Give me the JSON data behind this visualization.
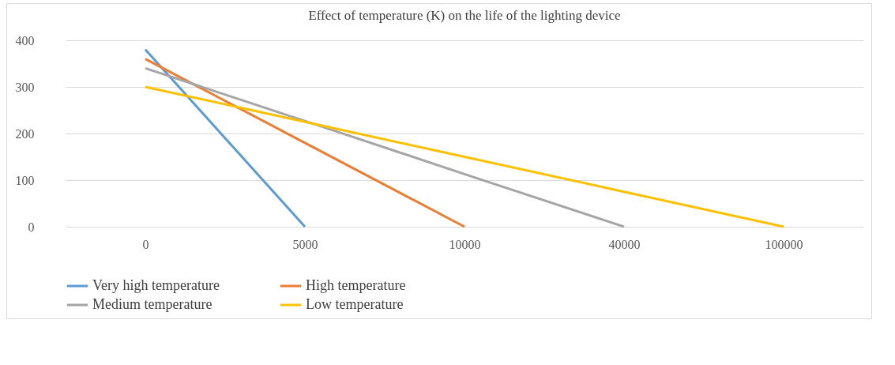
{
  "chart_data": {
    "type": "line",
    "title": "Effect of temperature (K) on the life of the lighting device",
    "categories": [
      "0",
      "5000",
      "10000",
      "40000",
      "100000"
    ],
    "series": [
      {
        "name": "Very high temperature",
        "color": "#5b9bd5",
        "values": [
          380,
          0,
          null,
          null,
          null
        ]
      },
      {
        "name": "High temperature",
        "color": "#ed7d31",
        "values": [
          360,
          180,
          0,
          null,
          null
        ]
      },
      {
        "name": "Medium temperature",
        "color": "#a5a5a5",
        "values": [
          340,
          227,
          113,
          0,
          null
        ]
      },
      {
        "name": "Low temperature",
        "color": "#ffc000",
        "values": [
          300,
          225,
          150,
          75,
          0
        ]
      }
    ],
    "ylim": [
      0,
      400
    ],
    "yticks": [
      0,
      100,
      200,
      300,
      400
    ],
    "grid": "y",
    "legend": "bottom"
  }
}
